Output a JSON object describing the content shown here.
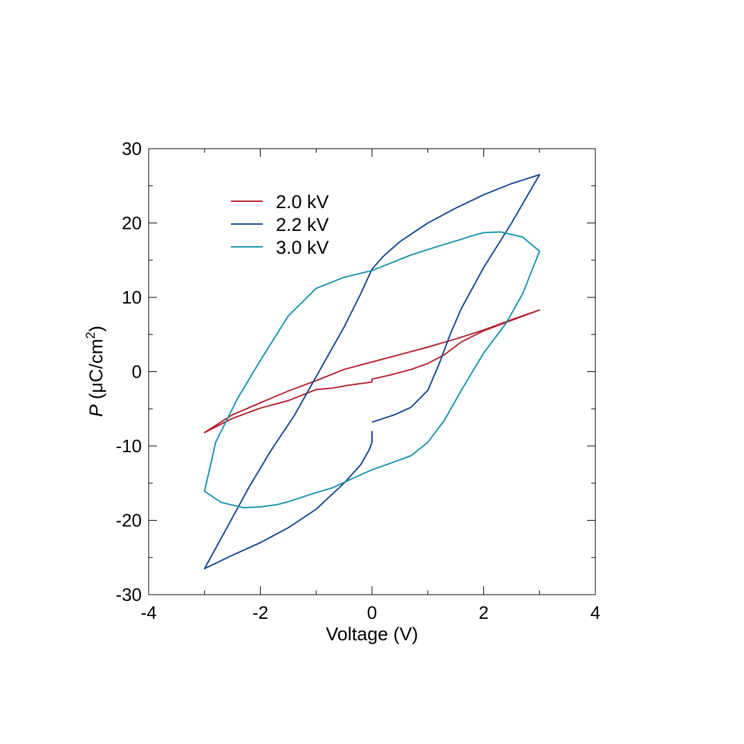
{
  "chart_data": {
    "type": "line",
    "xlabel": "Voltage (V)",
    "ylabel": {
      "symbol": "P",
      "rest": " (μC/cm",
      "superscript": "2",
      "close": ")"
    },
    "xlim": [
      -4,
      4
    ],
    "ylim": [
      -30,
      30
    ],
    "x_ticks": [
      -4,
      -2,
      0,
      2,
      4
    ],
    "x_tick_labels": [
      "-4",
      "-2",
      "0",
      "2",
      "4"
    ],
    "y_ticks": [
      -30,
      -20,
      -10,
      0,
      10,
      20,
      30
    ],
    "y_tick_labels": [
      "-30",
      "-20",
      "-10",
      "0",
      "10",
      "20",
      "30"
    ],
    "grid": false,
    "legend_position": "top-left",
    "series": [
      {
        "name": "2.0 kV",
        "color": "#b5202e",
        "x": [
          0,
          0,
          0.3,
          0.7,
          1.0,
          1.3,
          1.6,
          2.0,
          2.5,
          3.0,
          2.5,
          2.0,
          1.5,
          1.0,
          0.5,
          0,
          -0.5,
          -1.0,
          -1.5,
          -2.0,
          -2.5,
          -3.0,
          -2.5,
          -2.0,
          -1.5,
          -1.2,
          -1.0,
          -0.7,
          -0.4,
          0
        ],
        "y": [
          -1.4,
          -1.0,
          -0.5,
          0.3,
          1.1,
          2.3,
          4.0,
          5.5,
          6.9,
          8.3,
          7.0,
          5.6,
          4.4,
          3.3,
          2.3,
          1.3,
          0.3,
          -1.2,
          -2.6,
          -4.2,
          -5.8,
          -8.2,
          -6.3,
          -4.9,
          -3.9,
          -3.0,
          -2.4,
          -2.2,
          -1.8,
          -1.4
        ]
      },
      {
        "name": "2.2 kV",
        "color": "#15478f",
        "x": [
          0,
          0,
          -0.05,
          -0.2,
          -0.5,
          -1.0,
          -1.5,
          -2.0,
          -2.5,
          -3.0,
          -2.6,
          -2.2,
          -1.8,
          -1.4,
          -1.1,
          -0.8,
          -0.5,
          -0.2,
          0,
          0.2,
          0.5,
          1.0,
          1.5,
          2.0,
          2.5,
          3.0,
          2.5,
          2.0,
          1.6,
          1.4,
          1.2,
          1.0,
          0.7,
          0.4,
          0
        ],
        "y": [
          -8.0,
          -9.5,
          -10.5,
          -12.5,
          -15.0,
          -18.5,
          -21.0,
          -23.0,
          -24.7,
          -26.5,
          -21.0,
          -15.5,
          -10.5,
          -6.0,
          -2.0,
          2.0,
          6.0,
          10.5,
          13.8,
          15.5,
          17.5,
          20.0,
          22.0,
          23.8,
          25.3,
          26.5,
          20.0,
          14.0,
          8.5,
          5.0,
          1.0,
          -2.5,
          -4.8,
          -5.8,
          -6.8
        ]
      },
      {
        "name": "3.0 kV",
        "color": "#1893ab",
        "x": [
          0,
          0.3,
          0.7,
          1.0,
          1.3,
          1.6,
          2.0,
          2.4,
          2.7,
          3.0,
          2.7,
          2.3,
          2.0,
          1.8,
          1.6,
          1.2,
          0.7,
          0,
          -0.5,
          -1.0,
          -1.5,
          -2.0,
          -2.4,
          -2.8,
          -3.0,
          -2.7,
          -2.3,
          -2.0,
          -1.7,
          -1.5,
          -1.3,
          -1.1,
          -0.7,
          -0.3,
          0
        ],
        "y": [
          -13.2,
          -12.4,
          -11.3,
          -9.5,
          -6.5,
          -2.5,
          2.5,
          6.5,
          10.5,
          16.2,
          18.1,
          18.8,
          18.7,
          18.3,
          17.8,
          16.9,
          15.7,
          13.6,
          12.7,
          11.2,
          7.5,
          1.5,
          -3.5,
          -9.5,
          -16.1,
          -17.6,
          -18.3,
          -18.2,
          -17.9,
          -17.5,
          -17.0,
          -16.5,
          -15.6,
          -14.2,
          -13.2
        ]
      }
    ]
  }
}
